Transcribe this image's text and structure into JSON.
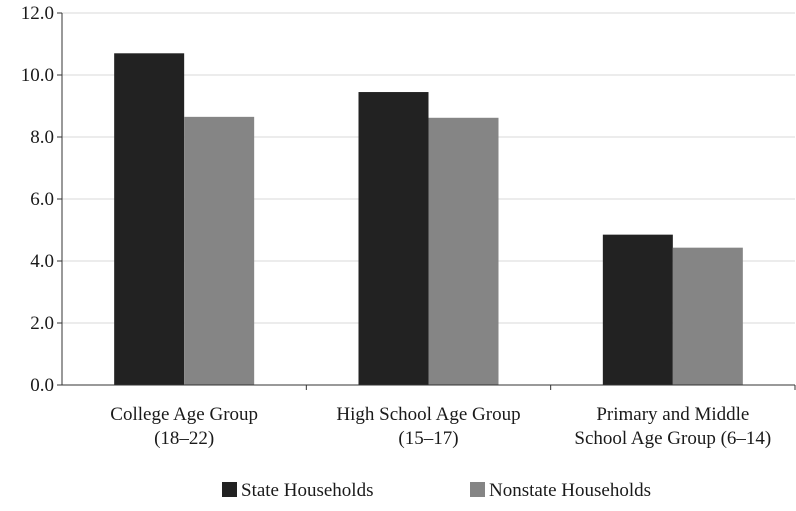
{
  "chart_data": {
    "type": "bar",
    "title": "",
    "xlabel": "",
    "ylabel": "",
    "ylim": [
      0,
      12
    ],
    "yticks": [
      0,
      2,
      4,
      6,
      8,
      10,
      12
    ],
    "ytick_labels": [
      "0.0",
      "2.0",
      "4.0",
      "6.0",
      "8.0",
      "10.0",
      "12.0"
    ],
    "grid": true,
    "legend_position": "bottom",
    "categories": [
      [
        "College Age Group",
        "(18–22)"
      ],
      [
        "High School Age Group",
        "(15–17)"
      ],
      [
        "Primary and Middle",
        "School Age Group (6–14)"
      ]
    ],
    "series": [
      {
        "name": "State Households",
        "color": "#222222",
        "values": [
          10.7,
          9.45,
          4.85
        ]
      },
      {
        "name": "Nonstate Households",
        "color": "#858585",
        "values": [
          8.65,
          8.62,
          4.43
        ]
      }
    ]
  }
}
